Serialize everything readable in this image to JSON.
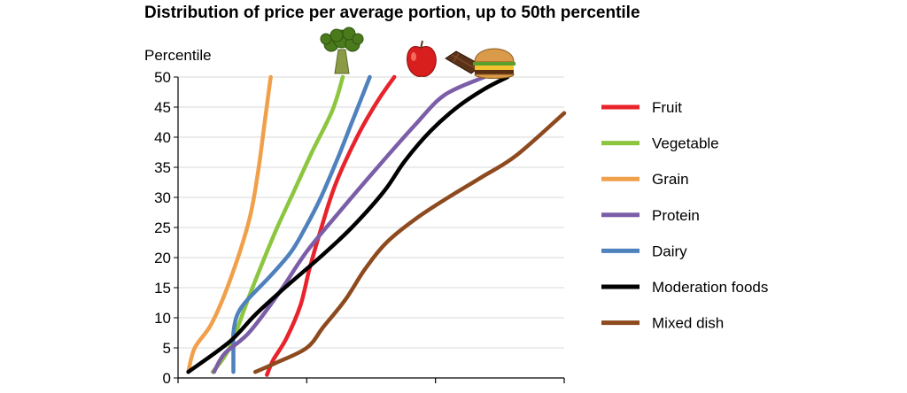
{
  "chart_data": {
    "type": "line",
    "title": "Distribution of price per average portion, up to 50th percentile",
    "ylabel": "Percentile",
    "xlabel": "",
    "ylim": [
      0,
      50
    ],
    "xlim": [
      0,
      3
    ],
    "yticks": [
      "0",
      "5",
      "10",
      "15",
      "20",
      "25",
      "30",
      "35",
      "40",
      "45",
      "50"
    ],
    "grid": true,
    "legend_position": "right",
    "series": [
      {
        "name": "Fruit",
        "color": "#e8232b",
        "icon": "apple-icon",
        "points": [
          [
            0.69,
            0.5
          ],
          [
            0.74,
            3
          ],
          [
            0.84,
            6.5
          ],
          [
            0.95,
            12
          ],
          [
            1.02,
            18
          ],
          [
            1.1,
            24
          ],
          [
            1.22,
            32
          ],
          [
            1.39,
            40
          ],
          [
            1.55,
            46
          ],
          [
            1.68,
            50
          ]
        ]
      },
      {
        "name": "Vegetable",
        "color": "#8cc63f",
        "icon": "broccoli-icon",
        "points": [
          [
            0.27,
            1
          ],
          [
            0.4,
            5
          ],
          [
            0.56,
            14
          ],
          [
            0.75,
            24
          ],
          [
            0.9,
            31
          ],
          [
            1.04,
            37.5
          ],
          [
            1.2,
            44.5
          ],
          [
            1.28,
            50
          ]
        ]
      },
      {
        "name": "Grain",
        "color": "#f0a04b",
        "icon": "",
        "points": [
          [
            0.08,
            1
          ],
          [
            0.13,
            5
          ],
          [
            0.26,
            9
          ],
          [
            0.4,
            16
          ],
          [
            0.55,
            26
          ],
          [
            0.62,
            34
          ],
          [
            0.67,
            42
          ],
          [
            0.72,
            50
          ]
        ]
      },
      {
        "name": "Protein",
        "color": "#7b5ea7",
        "icon": "burger-icon",
        "points": [
          [
            0.28,
            1
          ],
          [
            0.36,
            4
          ],
          [
            0.55,
            7.5
          ],
          [
            0.78,
            14
          ],
          [
            1.0,
            21
          ],
          [
            1.27,
            28
          ],
          [
            1.55,
            35
          ],
          [
            1.84,
            42
          ],
          [
            2.07,
            47
          ],
          [
            2.38,
            50
          ]
        ]
      },
      {
        "name": "Dairy",
        "color": "#4f81bd",
        "icon": "",
        "points": [
          [
            0.43,
            1
          ],
          [
            0.43,
            5
          ],
          [
            0.43,
            7.5
          ],
          [
            0.46,
            10.5
          ],
          [
            0.54,
            13
          ],
          [
            0.72,
            17
          ],
          [
            0.88,
            21
          ],
          [
            0.99,
            25
          ],
          [
            1.11,
            30
          ],
          [
            1.25,
            37
          ],
          [
            1.36,
            43
          ],
          [
            1.49,
            50
          ]
        ]
      },
      {
        "name": "Moderation foods",
        "color": "#000000",
        "icon": "candy-bar-icon",
        "points": [
          [
            0.08,
            1
          ],
          [
            0.4,
            6
          ],
          [
            0.6,
            10.5
          ],
          [
            0.83,
            15
          ],
          [
            1.1,
            20
          ],
          [
            1.35,
            25
          ],
          [
            1.6,
            31
          ],
          [
            1.76,
            36
          ],
          [
            1.96,
            41
          ],
          [
            2.17,
            45
          ],
          [
            2.38,
            48
          ],
          [
            2.56,
            50
          ]
        ]
      },
      {
        "name": "Mixed dish",
        "color": "#8e4a1f",
        "icon": "",
        "points": [
          [
            0.6,
            1
          ],
          [
            0.76,
            2.5
          ],
          [
            1.0,
            5
          ],
          [
            1.13,
            8.5
          ],
          [
            1.3,
            13
          ],
          [
            1.45,
            18
          ],
          [
            1.62,
            22.5
          ],
          [
            1.85,
            26.5
          ],
          [
            2.1,
            30
          ],
          [
            2.37,
            33.5
          ],
          [
            2.63,
            37
          ],
          [
            3.0,
            44
          ]
        ]
      }
    ]
  }
}
